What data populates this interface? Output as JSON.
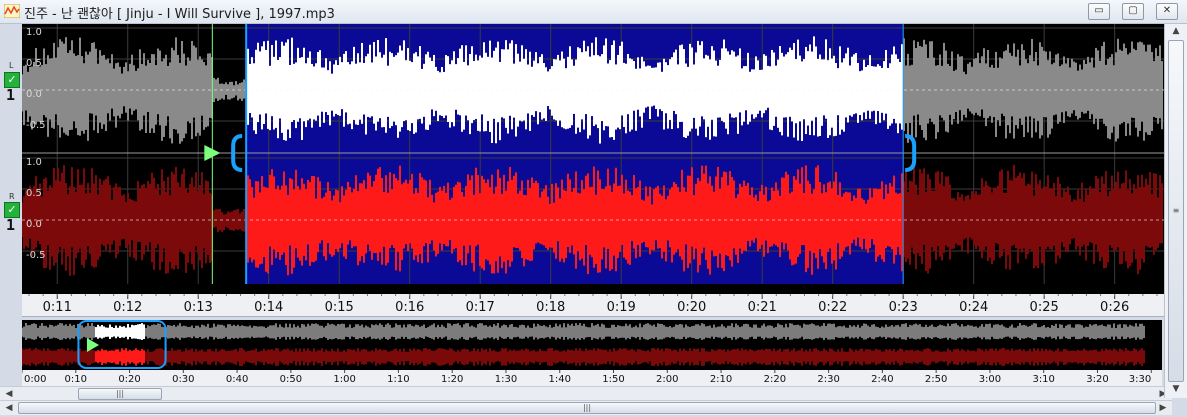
{
  "window": {
    "title": "진주 - 난 괜찮아 [ Jinju - I Will Survive ], 1997.mp3",
    "minimize_glyph": "▭",
    "maximize_glyph": "▢",
    "close_glyph": "✕"
  },
  "channels": [
    {
      "label": "L",
      "checked": true,
      "number": "1"
    },
    {
      "label": "R",
      "checked": true,
      "number": "1"
    }
  ],
  "amplitude_labels": [
    "1.0",
    "0.5",
    "0.0",
    "-0.5"
  ],
  "timeline": {
    "labels": [
      "0:11",
      "0:12",
      "0:13",
      "0:14",
      "0:15",
      "0:16",
      "0:17",
      "0:18",
      "0:19",
      "0:20",
      "0:21",
      "0:22",
      "0:23",
      "0:24",
      "0:25",
      "0:26"
    ],
    "view_start_seconds": 10.5,
    "view_end_seconds": 26.7,
    "selection_start_seconds": 13.68,
    "selection_end_seconds": 23.0,
    "play_cursor_seconds": 13.2
  },
  "overview": {
    "labels": [
      "0:00",
      "0:10",
      "0:20",
      "0:30",
      "0:40",
      "0:50",
      "1:00",
      "1:10",
      "1:20",
      "1:30",
      "1:40",
      "1:50",
      "2:00",
      "2:10",
      "2:20",
      "2:30",
      "2:40",
      "2:50",
      "3:00",
      "3:10",
      "3:20",
      "3:30"
    ],
    "total_seconds": 212,
    "waveform_end_seconds": 209
  },
  "scrollbars": {
    "h_thumb_glyph": "|||",
    "v_thumb_glyph": "≡",
    "left_arrow": "◀",
    "right_arrow": "▶",
    "up_arrow": "▲",
    "down_arrow": "▼"
  },
  "colors": {
    "selection_bg": "#0a0a96",
    "left_selected": "#ffffff",
    "left_unselected": "#8a8a8a",
    "right_selected": "#ff1a1a",
    "right_unselected": "#7d0a0a",
    "cursor": "#7dff7d",
    "marker": "#1aa0ff"
  }
}
